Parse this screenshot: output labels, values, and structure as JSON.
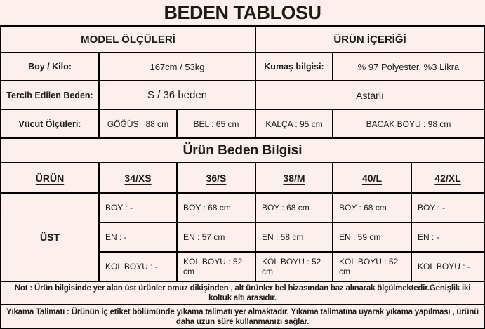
{
  "title": "BEDEN TABLOSU",
  "model_info": {
    "header_left": "MODEL ÖLÇÜLERİ",
    "header_right": "ÜRÜN İÇERİĞİ",
    "height_weight": {
      "label": "Boy / Kilo:",
      "value": "167cm / 53kg"
    },
    "fabric": {
      "label": "Kumaş bilgisi:",
      "value": "% 97 Polyester, %3 Likra"
    },
    "preferred_size": {
      "label": "Tercih Edilen Beden:",
      "value": "S / 36 beden"
    },
    "lining": "Astarlı",
    "body_measurements": {
      "label": "Vücut Ölçüleri:",
      "chest": "GÖĞÜS : 88 cm",
      "waist": "BEL : 65 cm",
      "hip": "KALÇA : 95 cm",
      "leg": "BACAK BOYU : 98 cm"
    }
  },
  "size_table": {
    "section_title": "Ürün Beden Bilgisi",
    "columns": [
      "ÜRÜN",
      "34/XS",
      "36/S",
      "38/M",
      "40/L",
      "42/XL"
    ],
    "row_group": "ÜST",
    "cells": [
      [
        "BOY : -",
        "BOY : 68 cm",
        "BOY : 68 cm",
        "BOY : 68 cm",
        "BOY : -"
      ],
      [
        "EN : -",
        "EN : 57 cm",
        "EN : 58 cm",
        "EN : 59 cm",
        "EN : -"
      ],
      [
        "KOL BOYU : -",
        "KOL BOYU : 52 cm",
        "KOL BOYU : 52 cm",
        "KOL BOYU : 52 cm",
        "KOL BOYU : -"
      ]
    ]
  },
  "footnotes": {
    "note": "Not : Ürün bilgisinde yer alan üst ürünler omuz dikişinden , alt ürünler bel hizasından baz alınarak ölçülmektedir.Genişlik iki koltuk altı arasıdır.",
    "washing": "Yıkama Talimatı : Ürünün iç etiket bölümünde yıkama talimatı yer almaktadır. Yıkama talimatına uyarak yıkama yapılması , ürünü daha uzun süre kullanmanızı sağlar."
  },
  "colors": {
    "background": "#fdf0ec",
    "border": "#000000",
    "text": "#1b1b1b"
  }
}
